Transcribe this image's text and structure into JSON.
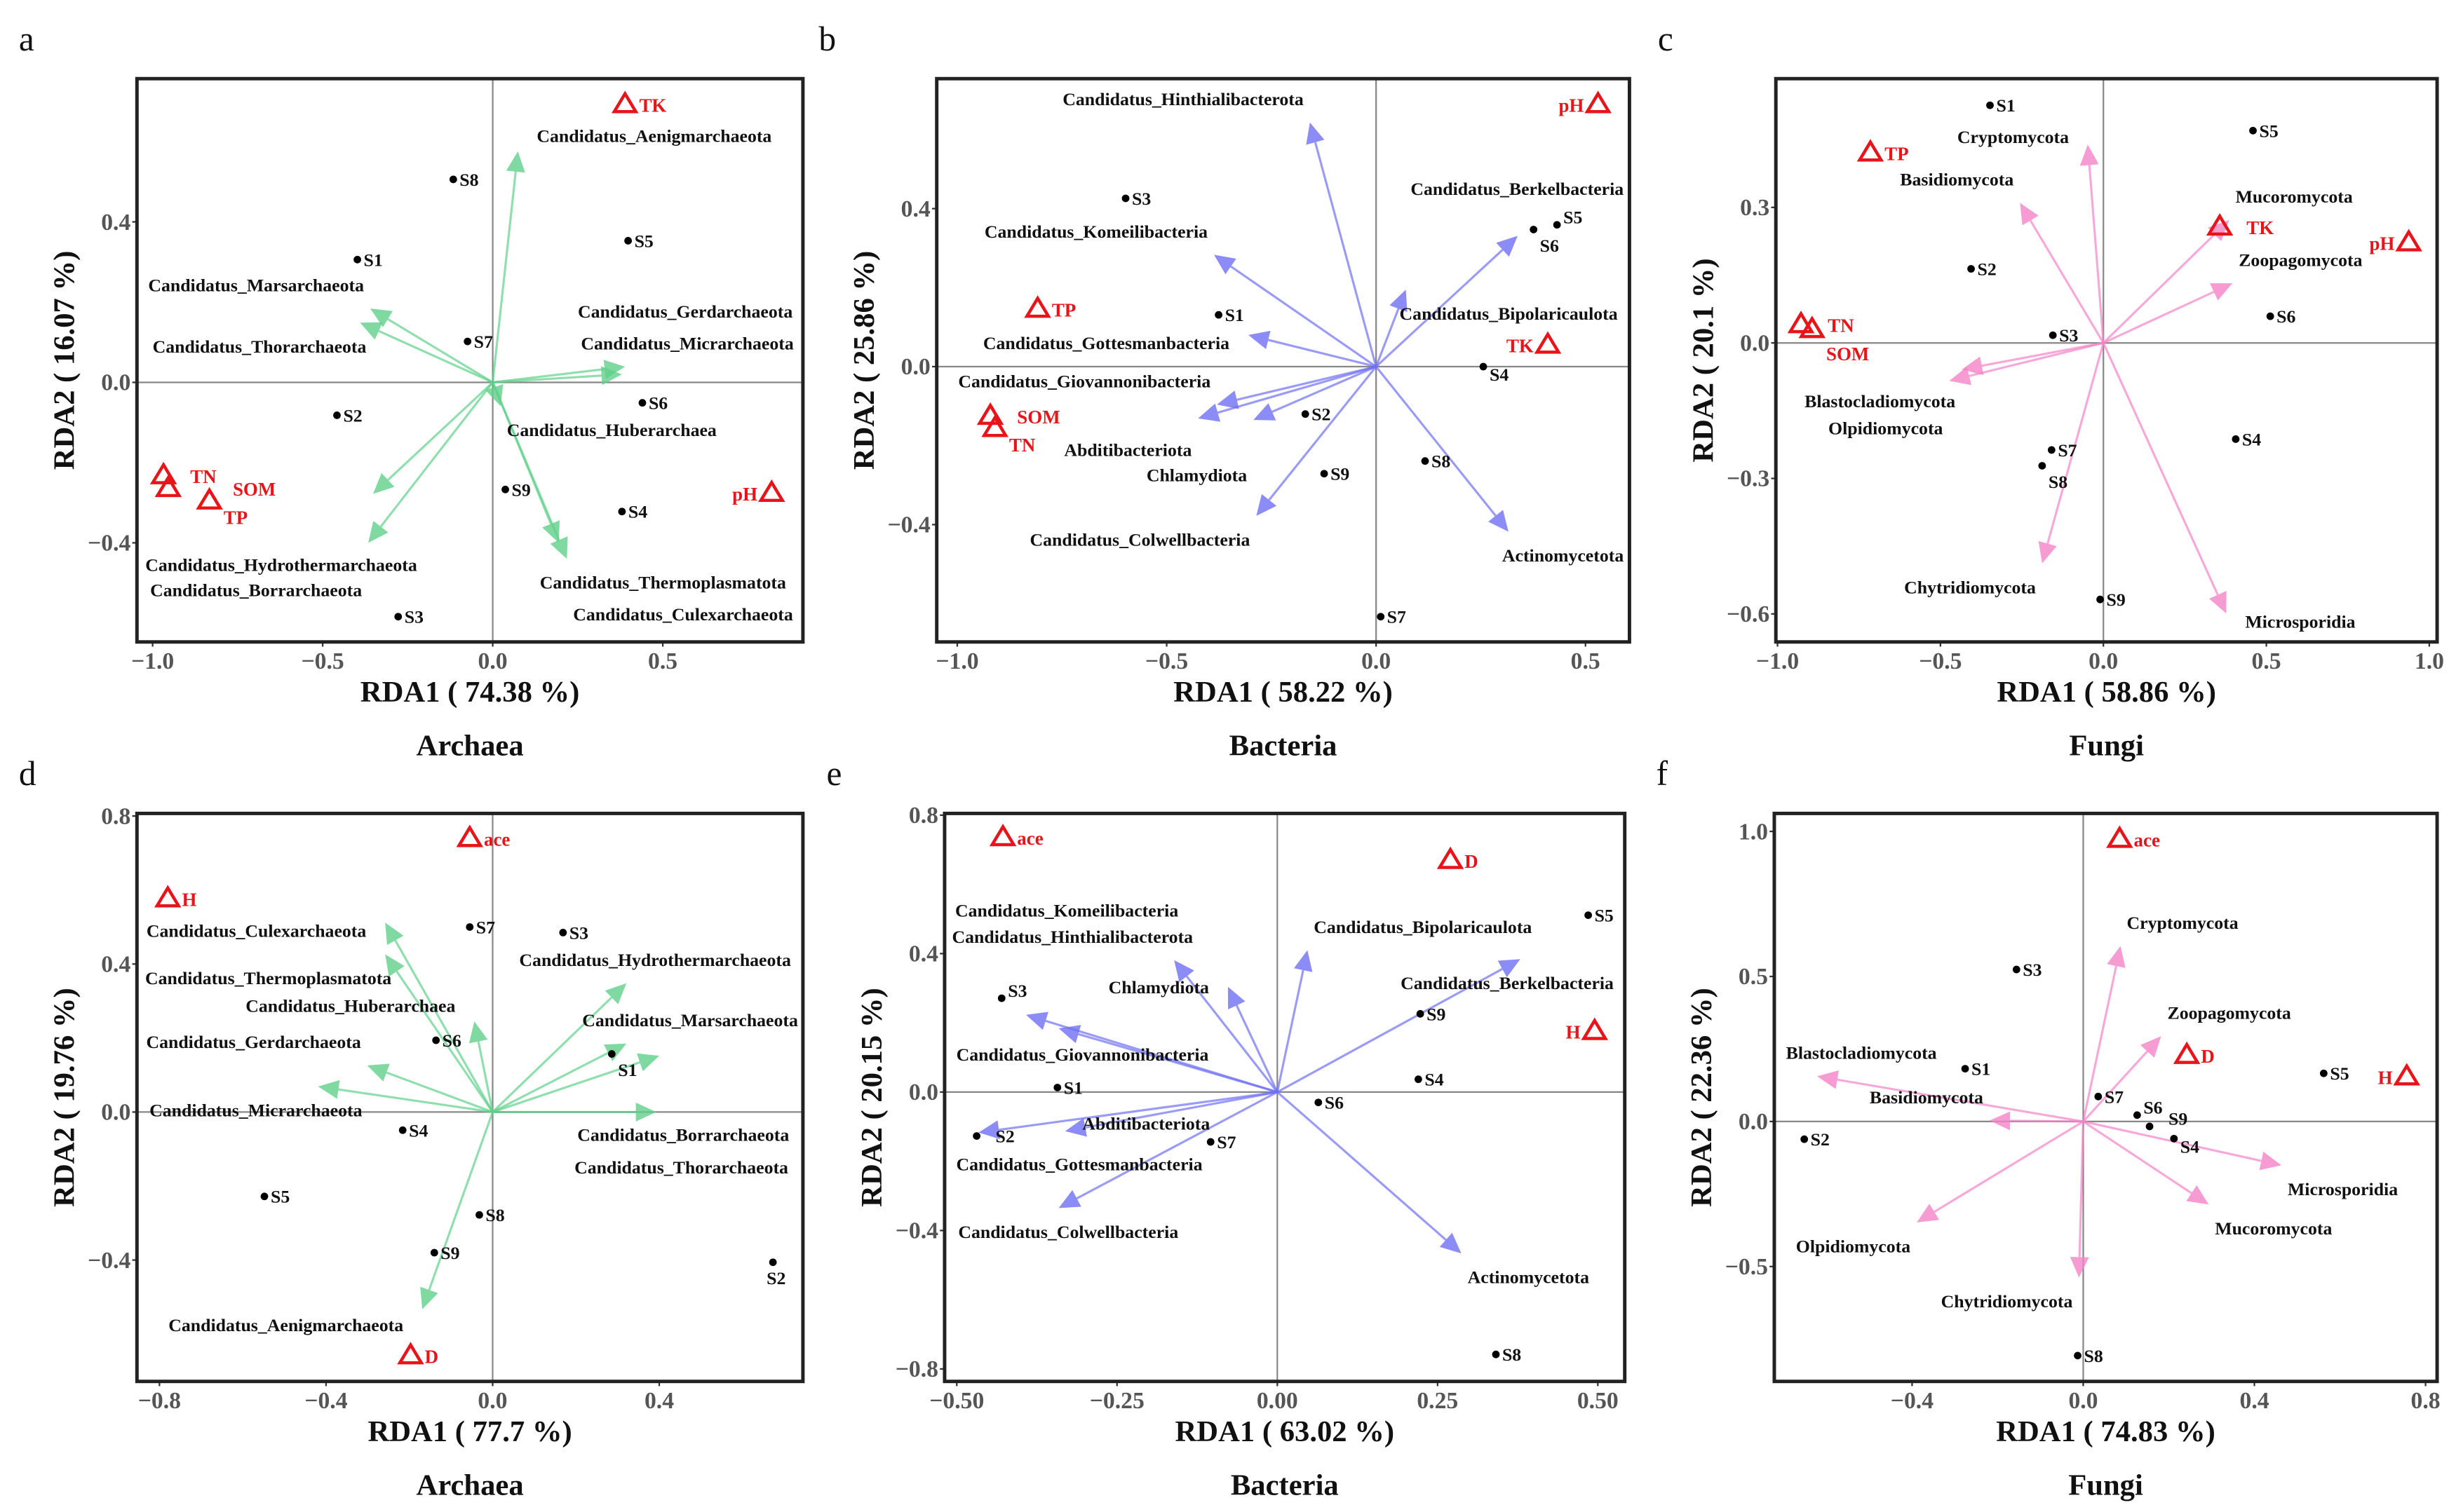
{
  "colors": {
    "archaea": "#5fd08a",
    "bacteria": "#6f6ff5",
    "fungi": "#f583c8",
    "env": "#e8141a"
  },
  "chart_data": [
    {
      "type": "scatter",
      "panel": "a",
      "subtitle": "Archaea",
      "xlabel": "RDA1 ( 74.38 %)",
      "ylabel": "RDA2 ( 16.07 %)",
      "group": "archaea",
      "xlim": [
        -1.046,
        0.912
      ],
      "ylim": [
        -0.647,
        0.757
      ],
      "xticks": [
        {
          "v": -1.0,
          "label": "−1.0"
        },
        {
          "v": -0.5,
          "label": "−0.5"
        },
        {
          "v": 0.0,
          "label": "0.0"
        },
        {
          "v": 0.5,
          "label": "0.5"
        }
      ],
      "yticks": [
        {
          "v": 0.4,
          "label": "0.4"
        },
        {
          "v": 0.0,
          "label": "0.0"
        },
        {
          "v": -0.4,
          "label": "−0.4"
        }
      ],
      "sites": [
        {
          "name": "S8",
          "x": -0.116,
          "y": 0.506
        },
        {
          "name": "S5",
          "x": 0.398,
          "y": 0.353
        },
        {
          "name": "S1",
          "x": -0.398,
          "y": 0.306
        },
        {
          "name": "S7",
          "x": -0.074,
          "y": 0.102
        },
        {
          "name": "S2",
          "x": -0.458,
          "y": -0.082
        },
        {
          "name": "S6",
          "x": 0.44,
          "y": -0.051
        },
        {
          "name": "S9",
          "x": 0.037,
          "y": -0.267
        },
        {
          "name": "S4",
          "x": 0.38,
          "y": -0.322
        },
        {
          "name": "S3",
          "x": -0.278,
          "y": -0.584
        }
      ],
      "species": [
        {
          "name": "Candidatus_Aenigmarchaeota",
          "x": 0.074,
          "y": 0.576
        },
        {
          "name": "Candidatus_Marsarchaeota",
          "x": -0.36,
          "y": 0.184
        },
        {
          "name": "Candidatus_Thorarchaeota",
          "x": -0.39,
          "y": 0.149
        },
        {
          "name": "Candidatus_Micrarchaeota",
          "x": 0.389,
          "y": 0.039
        },
        {
          "name": "Candidatus_Gerdarchaeota",
          "x": 0.38,
          "y": 0.02
        },
        {
          "name": "Candidatus_Huberarchaea",
          "x": 0.023,
          "y": -0.059
        },
        {
          "name": "Candidatus_Hydrothermarchaeota",
          "x": -0.352,
          "y": -0.278
        },
        {
          "name": "Candidatus_Borrarchaeota",
          "x": -0.366,
          "y": -0.4
        },
        {
          "name": "Candidatus_Thermoplasmatota",
          "x": 0.194,
          "y": -0.4
        },
        {
          "name": "Candidatus_Culexarchaeota",
          "x": 0.218,
          "y": -0.44
        }
      ],
      "env": [
        {
          "name": "TK",
          "x": 0.389,
          "y": 0.694
        },
        {
          "name": "pH",
          "x": 0.82,
          "y": -0.275
        },
        {
          "name": "TN",
          "x": -0.968,
          "y": -0.231
        },
        {
          "name": "SOM",
          "x": -0.954,
          "y": -0.263
        },
        {
          "name": "TP",
          "x": -0.833,
          "y": -0.294
        }
      ]
    },
    {
      "type": "scatter",
      "panel": "b",
      "subtitle": "Bacteria",
      "xlabel": "RDA1 ( 58.22 %)",
      "ylabel": "RDA2 ( 25.86 %)",
      "group": "bacteria",
      "xlim": [
        -1.049,
        0.605
      ],
      "ylim": [
        -0.697,
        0.729
      ],
      "xticks": [
        {
          "v": -1.0,
          "label": "−1.0"
        },
        {
          "v": -0.5,
          "label": "−0.5"
        },
        {
          "v": 0.0,
          "label": "0.0"
        },
        {
          "v": 0.5,
          "label": "0.5"
        }
      ],
      "yticks": [
        {
          "v": 0.4,
          "label": "0.4"
        },
        {
          "v": 0.0,
          "label": "0.0"
        },
        {
          "v": -0.4,
          "label": "−0.4"
        }
      ],
      "sites": [
        {
          "name": "S3",
          "x": -0.598,
          "y": 0.426
        },
        {
          "name": "S6",
          "x": 0.376,
          "y": 0.347
        },
        {
          "name": "S5",
          "x": 0.432,
          "y": 0.359
        },
        {
          "name": "S1",
          "x": -0.376,
          "y": 0.131
        },
        {
          "name": "S4",
          "x": 0.256,
          "y": 0.0
        },
        {
          "name": "S2",
          "x": -0.169,
          "y": -0.12
        },
        {
          "name": "S9",
          "x": -0.124,
          "y": -0.271
        },
        {
          "name": "S8",
          "x": 0.117,
          "y": -0.239
        },
        {
          "name": "S7",
          "x": 0.011,
          "y": -0.633
        }
      ],
      "species": [
        {
          "name": "Candidatus_Hinthialibacterota",
          "x": -0.158,
          "y": 0.618
        },
        {
          "name": "Candidatus_Komeilibacteria",
          "x": -0.387,
          "y": 0.283
        },
        {
          "name": "Candidatus_Gottesmanbacteria",
          "x": -0.305,
          "y": 0.08
        },
        {
          "name": "Candidatus_Giovannonibacteria",
          "x": -0.38,
          "y": -0.096
        },
        {
          "name": "Abditibacteriota",
          "x": -0.425,
          "y": -0.131
        },
        {
          "name": "Chlamydiota",
          "x": -0.293,
          "y": -0.135
        },
        {
          "name": "Candidatus_Colwellbacteria",
          "x": -0.286,
          "y": -0.378
        },
        {
          "name": "Candidatus_Berkelbacteria",
          "x": 0.338,
          "y": 0.331
        },
        {
          "name": "Candidatus_Bipolaricaulota",
          "x": 0.071,
          "y": 0.195
        },
        {
          "name": "Actinomycetota",
          "x": 0.316,
          "y": -0.418
        }
      ],
      "env": [
        {
          "name": "pH",
          "x": 0.53,
          "y": 0.665
        },
        {
          "name": "TK",
          "x": 0.41,
          "y": 0.056
        },
        {
          "name": "TP",
          "x": -0.808,
          "y": 0.147
        },
        {
          "name": "SOM",
          "x": -0.921,
          "y": -0.124
        },
        {
          "name": "TN",
          "x": -0.91,
          "y": -0.155
        }
      ]
    },
    {
      "type": "scatter",
      "panel": "c",
      "subtitle": "Fungi",
      "xlabel": "RDA1 ( 58.86 %)",
      "ylabel": "RDA2 ( 20.1 %)",
      "group": "fungi",
      "xlim": [
        -1.005,
        1.024
      ],
      "ylim": [
        -0.662,
        0.585
      ],
      "xticks": [
        {
          "v": -1.0,
          "label": "−1.0"
        },
        {
          "v": -0.5,
          "label": "−0.5"
        },
        {
          "v": 0.0,
          "label": "0.0"
        },
        {
          "v": 0.5,
          "label": "0.5"
        },
        {
          "v": 1.0,
          "label": "1.0"
        }
      ],
      "yticks": [
        {
          "v": 0.3,
          "label": "0.3"
        },
        {
          "v": 0.0,
          "label": "0.0"
        },
        {
          "v": -0.3,
          "label": "−0.3"
        },
        {
          "v": -0.6,
          "label": "−0.6"
        }
      ],
      "sites": [
        {
          "name": "S1",
          "x": -0.348,
          "y": 0.526
        },
        {
          "name": "S5",
          "x": 0.459,
          "y": 0.47
        },
        {
          "name": "S2",
          "x": -0.406,
          "y": 0.164
        },
        {
          "name": "S3",
          "x": -0.155,
          "y": 0.017
        },
        {
          "name": "S6",
          "x": 0.512,
          "y": 0.059
        },
        {
          "name": "S7",
          "x": -0.159,
          "y": -0.237
        },
        {
          "name": "S8",
          "x": -0.188,
          "y": -0.272
        },
        {
          "name": "S4",
          "x": 0.406,
          "y": -0.213
        },
        {
          "name": "S9",
          "x": -0.01,
          "y": -0.568
        }
      ],
      "species": [
        {
          "name": "Cryptomycota",
          "x": -0.048,
          "y": 0.439
        },
        {
          "name": "Basidiomycota",
          "x": -0.256,
          "y": 0.31
        },
        {
          "name": "Mucoromycota",
          "x": 0.386,
          "y": 0.272
        },
        {
          "name": "Zoopagomycota",
          "x": 0.396,
          "y": 0.132
        },
        {
          "name": "Blastocladiomycota",
          "x": -0.435,
          "y": -0.059
        },
        {
          "name": "Olpidiomycota",
          "x": -0.473,
          "y": -0.084
        },
        {
          "name": "Chytridiomycota",
          "x": -0.188,
          "y": -0.488
        },
        {
          "name": "Microsporidia",
          "x": 0.377,
          "y": -0.599
        }
      ],
      "env": [
        {
          "name": "TP",
          "x": -0.715,
          "y": 0.422
        },
        {
          "name": "TK",
          "x": 0.357,
          "y": 0.258
        },
        {
          "name": "pH",
          "x": 0.937,
          "y": 0.223
        },
        {
          "name": "TN",
          "x": -0.928,
          "y": 0.042
        },
        {
          "name": "SOM",
          "x": -0.894,
          "y": 0.031
        }
      ]
    },
    {
      "type": "scatter",
      "panel": "d",
      "subtitle": "Archaea",
      "xlabel": "RDA1 ( 77.7 %)",
      "ylabel": "RDA2 ( 19.76 %)",
      "group": "archaea",
      "xlim": [
        -0.854,
        0.745
      ],
      "ylim": [
        -0.728,
        0.807
      ],
      "xticks": [
        {
          "v": -0.8,
          "label": "−0.8"
        },
        {
          "v": -0.4,
          "label": "−0.4"
        },
        {
          "v": 0.0,
          "label": "0.0"
        },
        {
          "v": 0.4,
          "label": "0.4"
        }
      ],
      "yticks": [
        {
          "v": 0.8,
          "label": "0.8"
        },
        {
          "v": 0.4,
          "label": "0.4"
        },
        {
          "v": 0.0,
          "label": "0.0"
        },
        {
          "v": -0.4,
          "label": "−0.4"
        }
      ],
      "sites": [
        {
          "name": "S7",
          "x": -0.055,
          "y": 0.5
        },
        {
          "name": "S3",
          "x": 0.169,
          "y": 0.485
        },
        {
          "name": "S6",
          "x": -0.136,
          "y": 0.194
        },
        {
          "name": "S1",
          "x": 0.286,
          "y": 0.157
        },
        {
          "name": "S4",
          "x": -0.216,
          "y": -0.049
        },
        {
          "name": "S5",
          "x": -0.548,
          "y": -0.228
        },
        {
          "name": "S8",
          "x": -0.032,
          "y": -0.278
        },
        {
          "name": "S9",
          "x": -0.14,
          "y": -0.38
        },
        {
          "name": "S2",
          "x": 0.673,
          "y": -0.406
        }
      ],
      "species": [
        {
          "name": "Candidatus_Culexarchaeota",
          "x": -0.258,
          "y": 0.512
        },
        {
          "name": "Candidatus_Thermoplasmatota",
          "x": -0.258,
          "y": 0.426
        },
        {
          "name": "Candidatus_Huberarchaea",
          "x": -0.044,
          "y": 0.245
        },
        {
          "name": "Candidatus_Hydrothermarchaeota",
          "x": 0.321,
          "y": 0.348
        },
        {
          "name": "Candidatus_Marsarchaeota",
          "x": 0.321,
          "y": 0.185
        },
        {
          "name": "Candidatus_Borrarchaeota",
          "x": 0.4,
          "y": 0.152
        },
        {
          "name": "Candidatus_Thorarchaeota",
          "x": 0.393,
          "y": 0.0
        },
        {
          "name": "Candidatus_Gerdarchaeota",
          "x": -0.301,
          "y": 0.126
        },
        {
          "name": "Candidatus_Micrarchaeota",
          "x": -0.419,
          "y": 0.069
        },
        {
          "name": "Candidatus_Aenigmarchaeota",
          "x": -0.169,
          "y": -0.533
        }
      ],
      "env": [
        {
          "name": "ace",
          "x": -0.055,
          "y": 0.741
        },
        {
          "name": "H",
          "x": -0.78,
          "y": 0.578
        },
        {
          "name": "D",
          "x": -0.197,
          "y": -0.657
        }
      ]
    },
    {
      "type": "scatter",
      "panel": "e",
      "subtitle": "Bacteria",
      "xlabel": "RDA1 ( 63.02 %)",
      "ylabel": "RDA2 ( 20.15 %)",
      "group": "bacteria",
      "xlim": [
        -0.519,
        0.542
      ],
      "ylim": [
        -0.836,
        0.805
      ],
      "xticks": [
        {
          "v": -0.5,
          "label": "−0.50"
        },
        {
          "v": -0.25,
          "label": "−0.25"
        },
        {
          "v": 0.0,
          "label": "0.00"
        },
        {
          "v": 0.25,
          "label": "0.25"
        },
        {
          "v": 0.5,
          "label": "0.50"
        }
      ],
      "yticks": [
        {
          "v": 0.8,
          "label": "0.8"
        },
        {
          "v": 0.4,
          "label": "0.4"
        },
        {
          "v": 0.0,
          "label": "0.0"
        },
        {
          "v": -0.4,
          "label": "−0.4"
        },
        {
          "v": -0.8,
          "label": "−0.8"
        }
      ],
      "sites": [
        {
          "name": "S5",
          "x": 0.485,
          "y": 0.511
        },
        {
          "name": "S9",
          "x": 0.223,
          "y": 0.226
        },
        {
          "name": "S3",
          "x": -0.43,
          "y": 0.271
        },
        {
          "name": "S4",
          "x": 0.22,
          "y": 0.037
        },
        {
          "name": "S1",
          "x": -0.343,
          "y": 0.013
        },
        {
          "name": "S6",
          "x": 0.064,
          "y": -0.03
        },
        {
          "name": "S2",
          "x": -0.469,
          "y": -0.127
        },
        {
          "name": "S7",
          "x": -0.104,
          "y": -0.144
        },
        {
          "name": "S8",
          "x": 0.341,
          "y": -0.758
        }
      ],
      "species": [
        {
          "name": "Candidatus_Hinthialibacterota",
          "x": -0.161,
          "y": 0.381
        },
        {
          "name": "Candidatus_Giovannonibacteria",
          "x": -0.392,
          "y": 0.223
        },
        {
          "name": "Chlamydiota",
          "x": -0.077,
          "y": 0.304
        },
        {
          "name": "Candidatus_Bipolaricaulota",
          "x": 0.047,
          "y": 0.41
        },
        {
          "name": "Candidatus_Berkelbacteria",
          "x": 0.379,
          "y": 0.384
        },
        {
          "name": "Candidatus_Komeilibacteria",
          "x": -0.341,
          "y": 0.184
        },
        {
          "name": "Candidatus_Gottesmanbacteria",
          "x": -0.466,
          "y": -0.117
        },
        {
          "name": "Abditibacteriota",
          "x": -0.331,
          "y": -0.113
        },
        {
          "name": "Candidatus_Colwellbacteria",
          "x": -0.341,
          "y": -0.335
        },
        {
          "name": "Actinomycetota",
          "x": 0.287,
          "y": -0.466
        }
      ],
      "env": [
        {
          "name": "ace",
          "x": -0.428,
          "y": 0.737
        },
        {
          "name": "D",
          "x": 0.27,
          "y": 0.671
        },
        {
          "name": "H",
          "x": 0.495,
          "y": 0.177
        }
      ]
    },
    {
      "type": "scatter",
      "panel": "f",
      "subtitle": "Fungi",
      "xlabel": "RDA1 ( 74.83 %)",
      "ylabel": "RDA2 ( 22.36 %)",
      "group": "fungi",
      "xlim": [
        -0.722,
        0.827
      ],
      "ylim": [
        -0.896,
        1.062
      ],
      "xticks": [
        {
          "v": -0.4,
          "label": "−0.4"
        },
        {
          "v": 0.0,
          "label": "0.0"
        },
        {
          "v": 0.4,
          "label": "0.4"
        },
        {
          "v": 0.8,
          "label": "0.8"
        }
      ],
      "yticks": [
        {
          "v": 1.0,
          "label": "1.0"
        },
        {
          "v": 0.5,
          "label": "0.5"
        },
        {
          "v": 0.0,
          "label": "0.0"
        },
        {
          "v": -0.5,
          "label": "−0.5"
        }
      ],
      "sites": [
        {
          "name": "S3",
          "x": -0.156,
          "y": 0.524
        },
        {
          "name": "S1",
          "x": -0.276,
          "y": 0.182
        },
        {
          "name": "S7",
          "x": 0.035,
          "y": 0.086
        },
        {
          "name": "S6",
          "x": 0.126,
          "y": 0.022
        },
        {
          "name": "S9",
          "x": 0.155,
          "y": -0.017
        },
        {
          "name": "S4",
          "x": 0.212,
          "y": -0.059
        },
        {
          "name": "S5",
          "x": 0.562,
          "y": 0.166
        },
        {
          "name": "S2",
          "x": -0.652,
          "y": -0.061
        },
        {
          "name": "S8",
          "x": -0.013,
          "y": -0.807
        }
      ],
      "species": [
        {
          "name": "Cryptomycota",
          "x": 0.087,
          "y": 0.605
        },
        {
          "name": "Zoopagomycota",
          "x": 0.182,
          "y": 0.294
        },
        {
          "name": "Blastocladiomycota",
          "x": -0.622,
          "y": 0.156
        },
        {
          "name": "Basidiomycota",
          "x": -0.219,
          "y": 0.003
        },
        {
          "name": "Microsporidia",
          "x": 0.463,
          "y": -0.151
        },
        {
          "name": "Mucoromycota",
          "x": 0.293,
          "y": -0.286
        },
        {
          "name": "Olpidiomycota",
          "x": -0.389,
          "y": -0.348
        },
        {
          "name": "Chytridiomycota",
          "x": -0.01,
          "y": -0.538
        }
      ],
      "env": [
        {
          "name": "ace",
          "x": 0.085,
          "y": 0.975
        },
        {
          "name": "D",
          "x": 0.242,
          "y": 0.23
        },
        {
          "name": "H",
          "x": 0.756,
          "y": 0.156
        }
      ]
    }
  ]
}
